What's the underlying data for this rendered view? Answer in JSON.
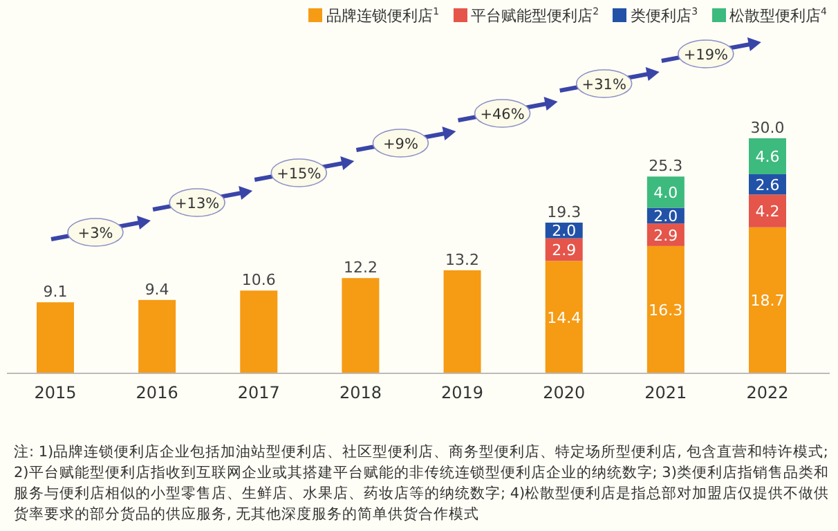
{
  "chart_data": {
    "type": "bar",
    "stacked": true,
    "legend": "top right",
    "categories": [
      "2015",
      "2016",
      "2017",
      "2018",
      "2019",
      "2020",
      "2021",
      "2022"
    ],
    "series": [
      {
        "name": "品牌连锁便利店$^{1}$",
        "color": "#f59b14",
        "values": [
          9.1,
          9.4,
          10.6,
          12.2,
          13.2,
          14.4,
          16.3,
          18.7
        ],
        "value_labels": [
          "9.1",
          "9.4",
          "10.6",
          "12.2",
          "13.2",
          "14.4",
          "16.3",
          "18.7"
        ]
      },
      {
        "name": "平台赋能型便利店$^{2}$",
        "color": "#e5554a",
        "values": [
          null,
          null,
          null,
          null,
          null,
          2.9,
          2.9,
          4.2
        ],
        "value_labels": [
          null,
          null,
          null,
          null,
          null,
          "2.9",
          "2.9",
          "4.2"
        ]
      },
      {
        "name": "类便利店$^{3}$",
        "color": "#2252a8",
        "values": [
          null,
          null,
          null,
          null,
          null,
          2.0,
          2.0,
          2.6
        ],
        "value_labels": [
          null,
          null,
          null,
          null,
          null,
          "2.0",
          "2.0",
          "2.6"
        ]
      },
      {
        "name": "松散型便利店$^{4}$",
        "color": "#3dba7e",
        "values": [
          null,
          null,
          null,
          null,
          null,
          null,
          4.0,
          4.6
        ],
        "value_labels": [
          null,
          null,
          null,
          null,
          null,
          null,
          "4.0",
          "4.6"
        ]
      }
    ],
    "totals": [
      null,
      null,
      null,
      null,
      null,
      "19.3",
      "25.3",
      "30.0"
    ],
    "annotations": [
      "+3%",
      "+13%",
      "+15%",
      "+9%",
      "+46%",
      "+31%",
      "+19%",
      "注: 1)品牌连锁便利店企业包括加油站型便利店、社区型便利店、商务型便利店、特定场所型便利店, 包含直营和特许模式; 2)平台赋能型便利店指收到互联网企业或其搭建平台赋能的非传统连锁型便利店企业的纳统数字; 3)类便利店指销售品类和服务与便利店相似的小型零售店、生鲜店、水果店、药妆店等的纳统数字; 4)松散型便利店是指总部对加盟店仅提供不做供货率要求的部分货品的供应服务, 无其他深度服务的简单供货合作模式"
    ]
  }
}
